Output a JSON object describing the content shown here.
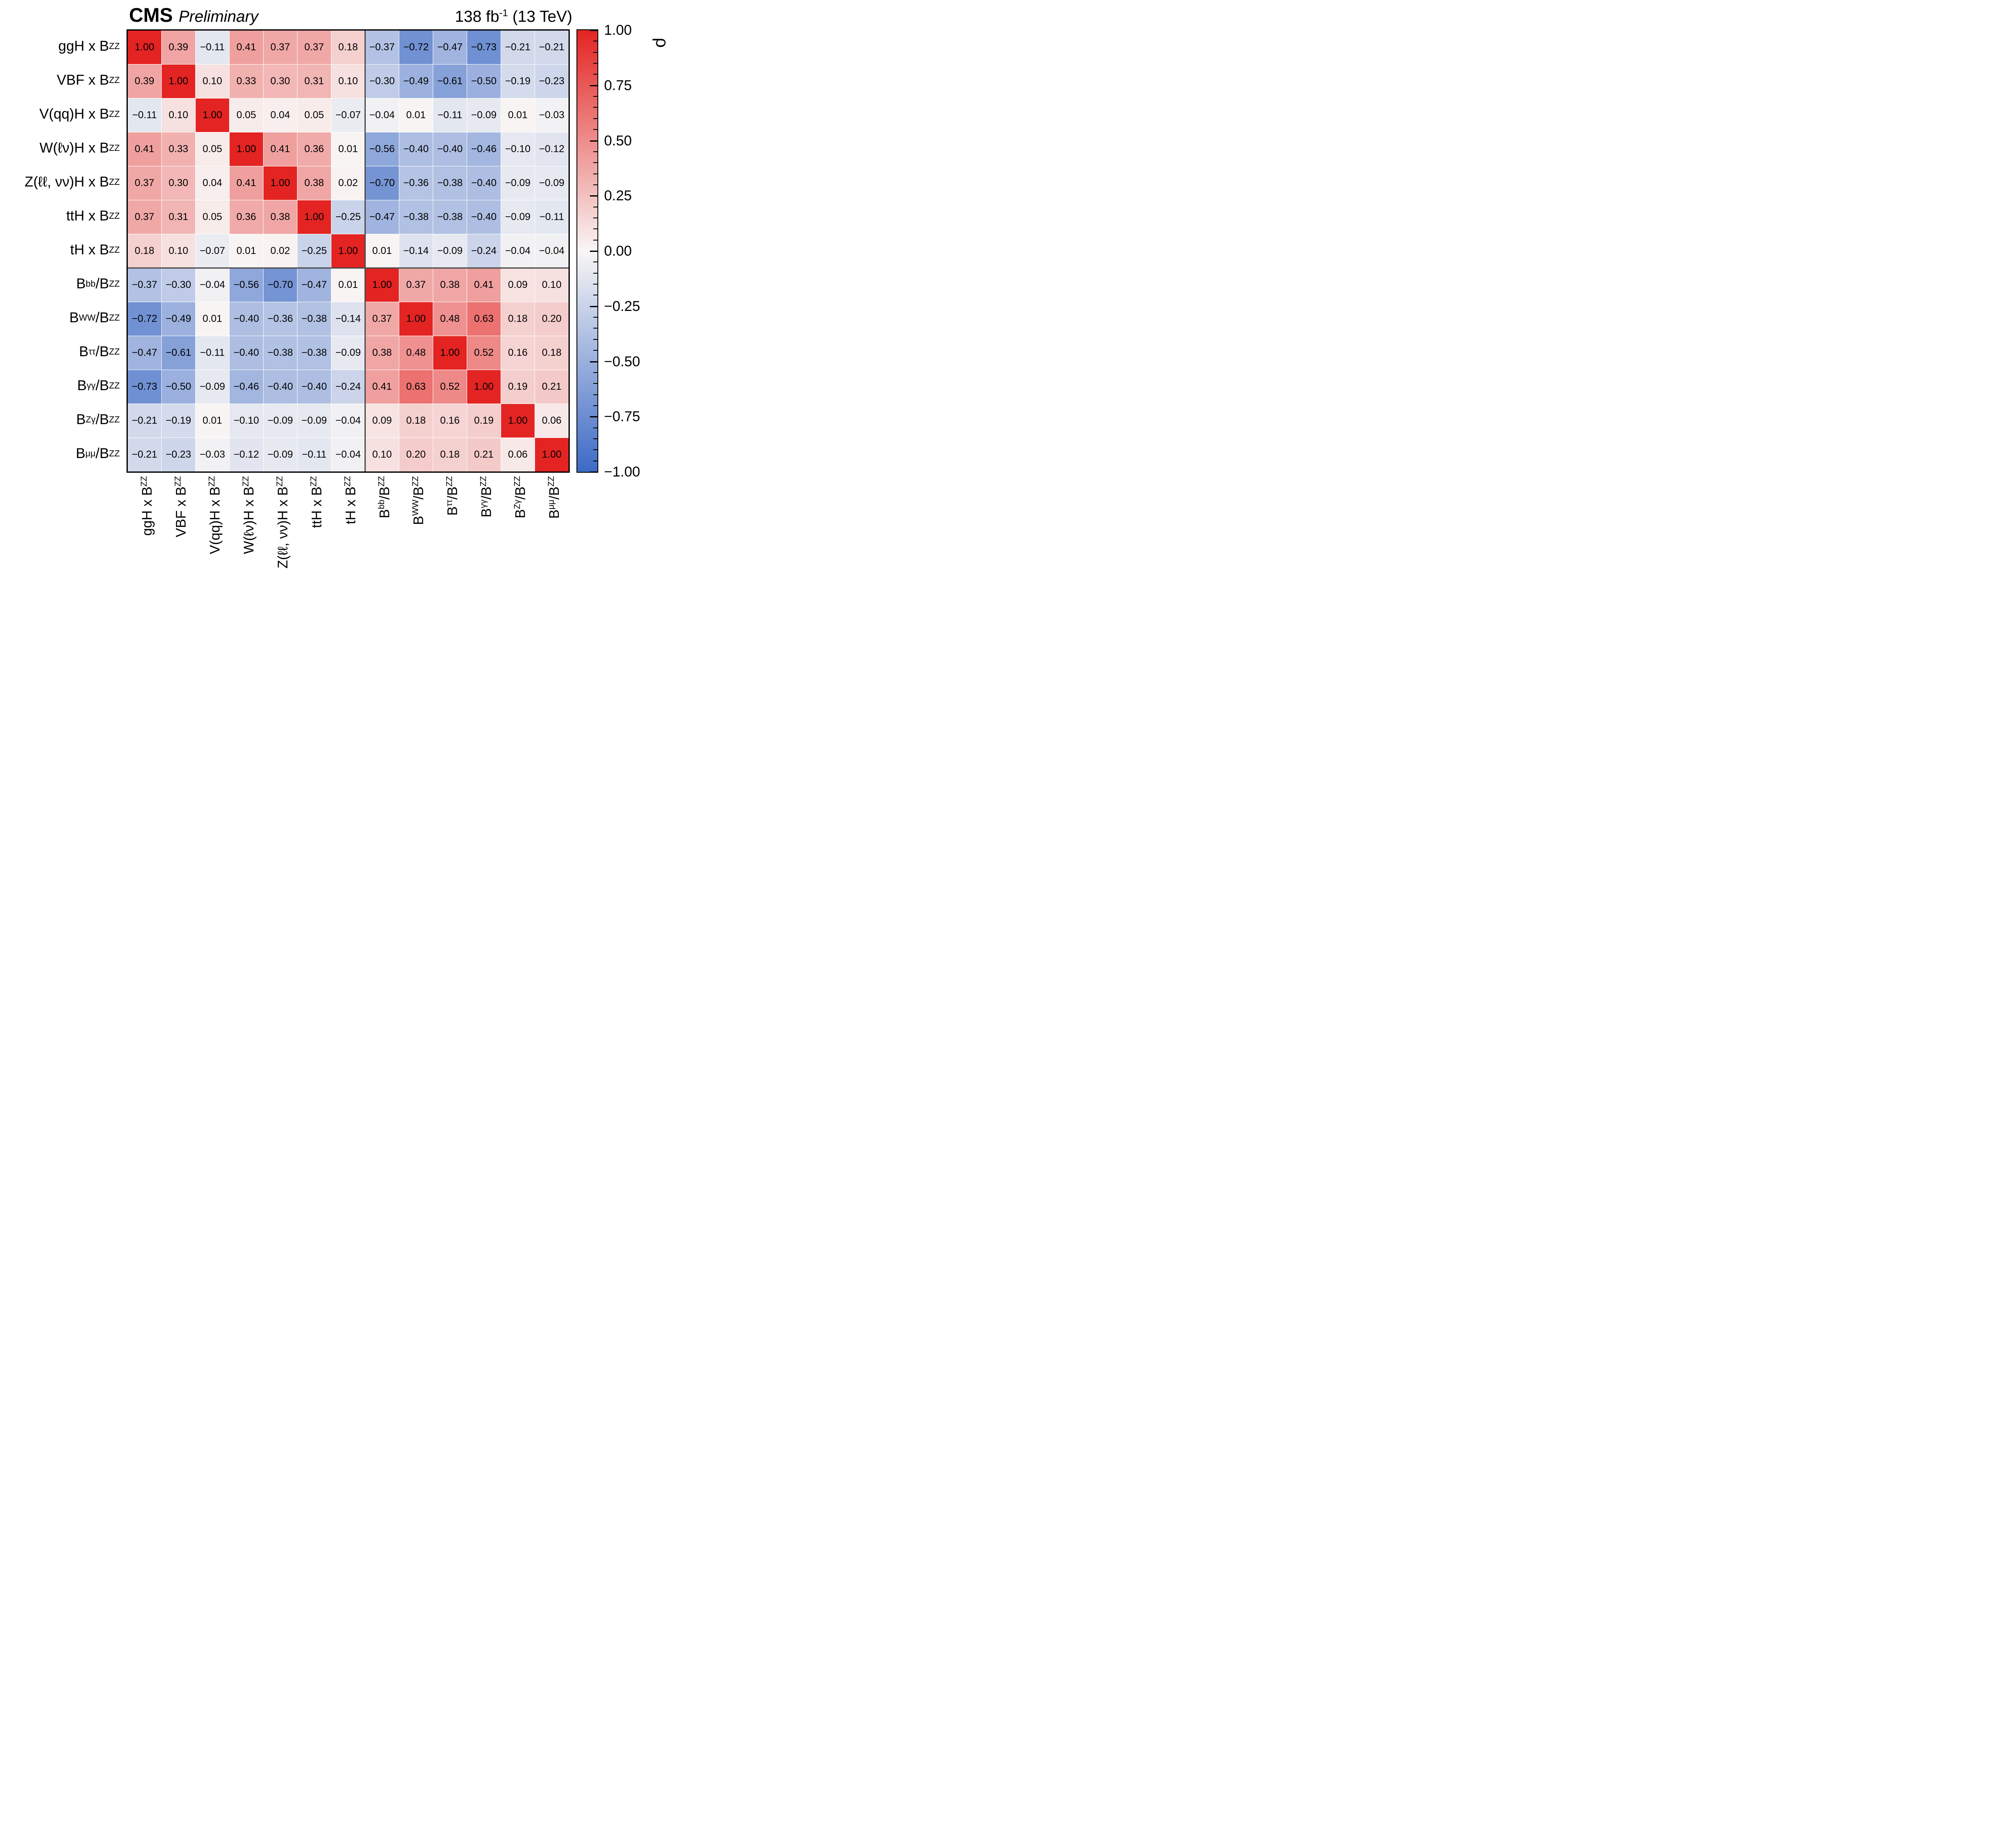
{
  "header": {
    "experiment": "CMS",
    "preliminary": "Preliminary",
    "luminosity": "138 fb^{-1} (13 TeV)"
  },
  "colorbar": {
    "title": "ρ",
    "ticks": [
      "1.00",
      "0.75",
      "0.50",
      "0.25",
      "0.00",
      "-0.25",
      "-0.50",
      "-0.75",
      "-1.00"
    ],
    "max_color": "#e32422",
    "mid_color": "#f8f6f5",
    "min_color": "#3d6ac6"
  },
  "chart_data": {
    "type": "heatmap",
    "title": "Correlation matrix of signal-strength and branching-fraction parameters",
    "zlabel": "ρ",
    "zlim": [
      -1,
      1
    ],
    "block_separator_after_index": 7,
    "categories": [
      "ggH x B^{ZZ}",
      "VBF x B^{ZZ}",
      "V(qq)H x B^{ZZ}",
      "W(ℓν)H x B^{ZZ}",
      "Z(ℓℓ, νν)H x B^{ZZ}",
      "ttH x B^{ZZ}",
      "tH x B^{ZZ}",
      "B^{bb}/B^{ZZ}",
      "B^{WW}/B^{ZZ}",
      "B^{ττ}/B^{ZZ}",
      "B^{γγ}/B^{ZZ}",
      "B^{Zγ}/B^{ZZ}",
      "B^{μμ}/B^{ZZ}"
    ],
    "matrix": [
      [
        1.0,
        0.39,
        -0.11,
        0.41,
        0.37,
        0.37,
        0.18,
        -0.37,
        -0.72,
        -0.47,
        -0.73,
        -0.21,
        -0.21
      ],
      [
        0.39,
        1.0,
        0.1,
        0.33,
        0.3,
        0.31,
        0.1,
        -0.3,
        -0.49,
        -0.61,
        -0.5,
        -0.19,
        -0.23
      ],
      [
        -0.11,
        0.1,
        1.0,
        0.05,
        0.04,
        0.05,
        -0.07,
        -0.04,
        0.01,
        -0.11,
        -0.09,
        0.01,
        -0.03
      ],
      [
        0.41,
        0.33,
        0.05,
        1.0,
        0.41,
        0.36,
        0.01,
        -0.56,
        -0.4,
        -0.4,
        -0.46,
        -0.1,
        -0.12
      ],
      [
        0.37,
        0.3,
        0.04,
        0.41,
        1.0,
        0.38,
        0.02,
        -0.7,
        -0.36,
        -0.38,
        -0.4,
        -0.09,
        -0.09
      ],
      [
        0.37,
        0.31,
        0.05,
        0.36,
        0.38,
        1.0,
        -0.25,
        -0.47,
        -0.38,
        -0.38,
        -0.4,
        -0.09,
        -0.11
      ],
      [
        0.18,
        0.1,
        -0.07,
        0.01,
        0.02,
        -0.25,
        1.0,
        0.01,
        -0.14,
        -0.09,
        -0.24,
        -0.04,
        -0.04
      ],
      [
        -0.37,
        -0.3,
        -0.04,
        -0.56,
        -0.7,
        -0.47,
        0.01,
        1.0,
        0.37,
        0.38,
        0.41,
        0.09,
        0.1
      ],
      [
        -0.72,
        -0.49,
        0.01,
        -0.4,
        -0.36,
        -0.38,
        -0.14,
        0.37,
        1.0,
        0.48,
        0.63,
        0.18,
        0.2
      ],
      [
        -0.47,
        -0.61,
        -0.11,
        -0.4,
        -0.38,
        -0.38,
        -0.09,
        0.38,
        0.48,
        1.0,
        0.52,
        0.16,
        0.18
      ],
      [
        -0.73,
        -0.5,
        -0.09,
        -0.46,
        -0.4,
        -0.4,
        -0.24,
        0.41,
        0.63,
        0.52,
        1.0,
        0.19,
        0.21
      ],
      [
        -0.21,
        -0.19,
        0.01,
        -0.1,
        -0.09,
        -0.09,
        -0.04,
        0.09,
        0.18,
        0.16,
        0.19,
        1.0,
        0.06
      ],
      [
        -0.21,
        -0.23,
        -0.03,
        -0.12,
        -0.09,
        -0.11,
        -0.04,
        0.1,
        0.2,
        0.18,
        0.21,
        0.06,
        1.0
      ]
    ]
  }
}
